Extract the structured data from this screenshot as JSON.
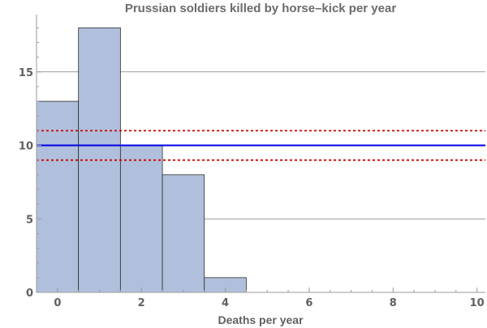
{
  "chart_data": {
    "type": "bar",
    "title": "Prussian soldiers killed by horse–kick per year",
    "xlabel": "Deaths per year",
    "ylabel": "",
    "categories": [
      0,
      1,
      2,
      3,
      4
    ],
    "values": [
      13,
      18,
      10,
      8,
      1
    ],
    "bar_color": "#b0c0dc",
    "xlim": [
      -0.5,
      10.2
    ],
    "ylim": [
      0,
      18.9
    ],
    "x_ticks": [
      0,
      2,
      4,
      6,
      8,
      10
    ],
    "y_ticks": [
      0,
      5,
      10,
      15
    ],
    "gridlines_y": [
      5,
      15
    ],
    "grid": true,
    "reference_lines": [
      {
        "value": 10,
        "style": "solid",
        "color": "#0000e6"
      },
      {
        "value": 9,
        "style": "dashed",
        "color": "#cc0000"
      },
      {
        "value": 11,
        "style": "dashed",
        "color": "#cc0000"
      }
    ]
  }
}
